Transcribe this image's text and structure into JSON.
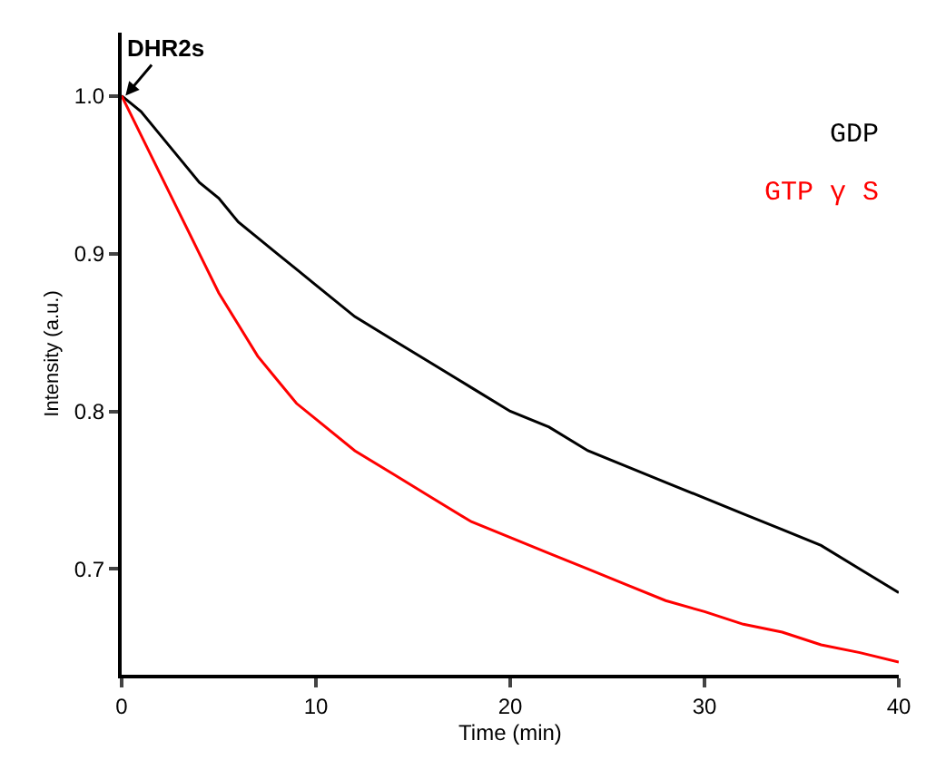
{
  "chart_data": {
    "type": "line",
    "xlabel": "Time (min)",
    "ylabel": "Intensity (a.u.)",
    "x": [
      0,
      1,
      2,
      3,
      4,
      5,
      6,
      7,
      8,
      9,
      10,
      12,
      14,
      16,
      18,
      20,
      22,
      24,
      26,
      28,
      30,
      32,
      34,
      36,
      38,
      40
    ],
    "series": [
      {
        "name": "GDP",
        "color": "#000000",
        "values": [
          1.0,
          0.99,
          0.975,
          0.96,
          0.945,
          0.935,
          0.92,
          0.91,
          0.9,
          0.89,
          0.88,
          0.86,
          0.845,
          0.83,
          0.815,
          0.8,
          0.79,
          0.775,
          0.765,
          0.755,
          0.745,
          0.735,
          0.725,
          0.715,
          0.7,
          0.685
        ]
      },
      {
        "name": "GTP γ S",
        "color": "#ff0000",
        "values": [
          1.0,
          0.975,
          0.95,
          0.925,
          0.9,
          0.875,
          0.855,
          0.835,
          0.82,
          0.805,
          0.795,
          0.775,
          0.76,
          0.745,
          0.73,
          0.72,
          0.71,
          0.7,
          0.69,
          0.68,
          0.673,
          0.665,
          0.66,
          0.652,
          0.647,
          0.641
        ]
      }
    ],
    "xlim": [
      0,
      40
    ],
    "xticks": [
      0,
      10,
      20,
      30,
      40
    ],
    "ylim": [
      0.633,
      1.04
    ],
    "yticks": [
      {
        "value": 1.0,
        "label": "1.0"
      },
      0.9,
      {
        "value": 0.8,
        "label": "0.8"
      },
      0.7
    ],
    "annotations": [
      {
        "text": "DHR2s",
        "x": 0.2,
        "y": 1.0
      }
    ],
    "legend": "top right",
    "marker": "none",
    "line_style": "solid"
  }
}
